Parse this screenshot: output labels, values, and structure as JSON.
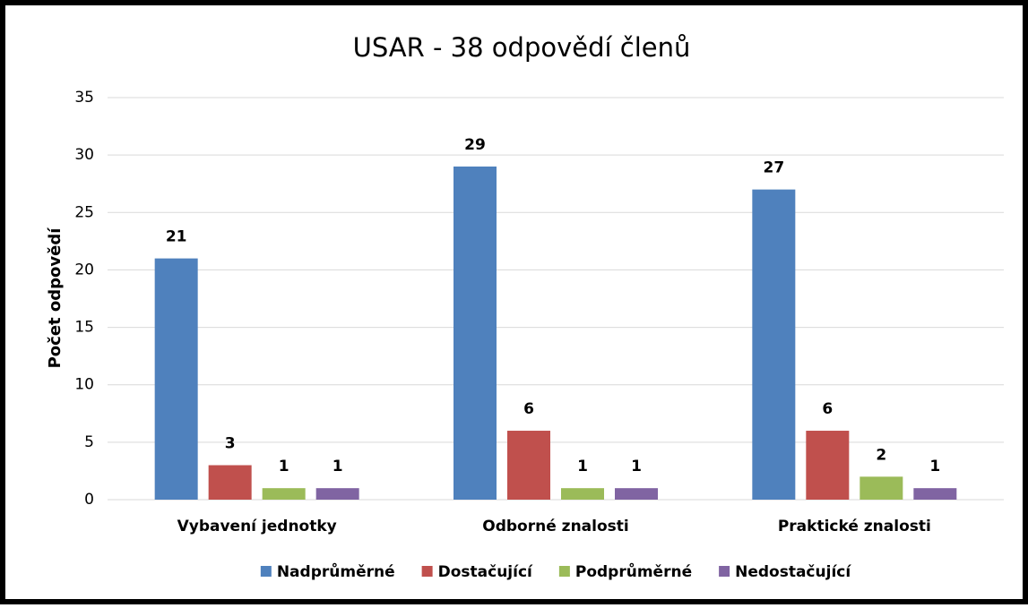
{
  "chart_data": {
    "type": "bar",
    "title": "USAR -  38 odpovědí členů",
    "y_label": "Počet odpovědí",
    "categories": [
      "Vybavení jednotky",
      "Odborné znalosti",
      "Praktické znalosti"
    ],
    "series": [
      {
        "name": "Nadprůměrné",
        "color": "#4f81bd",
        "values": [
          21,
          29,
          27
        ]
      },
      {
        "name": "Dostačující",
        "color": "#c0504d",
        "values": [
          3,
          6,
          6
        ]
      },
      {
        "name": "Podprůměrné",
        "color": "#9bbb59",
        "values": [
          1,
          1,
          2
        ]
      },
      {
        "name": "Nedostačující",
        "color": "#8064a2",
        "values": [
          1,
          1,
          1
        ]
      }
    ],
    "ylim": [
      0,
      35
    ],
    "yticks": [
      0,
      5,
      10,
      15,
      20,
      25,
      30,
      35
    ],
    "grid": true,
    "legend": "bottom"
  }
}
